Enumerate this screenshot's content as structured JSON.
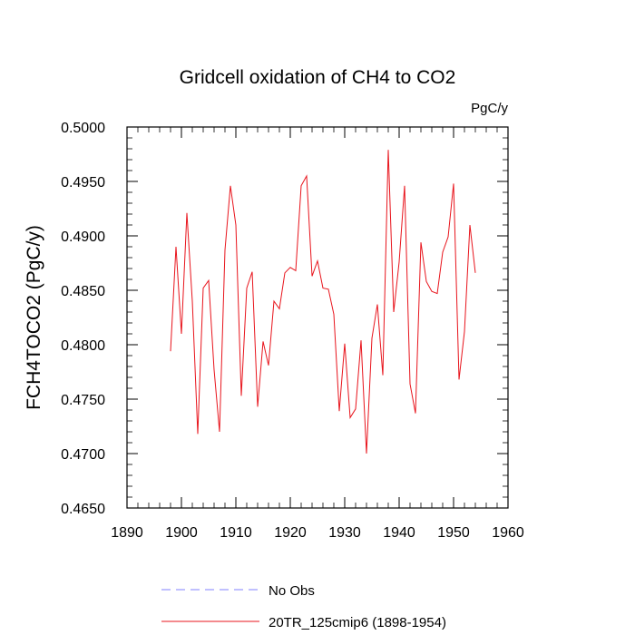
{
  "chart_data": {
    "type": "line",
    "title": "Gridcell oxidation of CH4 to CO2",
    "units": "PgC/y",
    "xlabel": "",
    "ylabel": "FCH4TOCO2  (PgC/y)",
    "xlim": [
      1890,
      1960
    ],
    "ylim": [
      0.465,
      0.5
    ],
    "xticks": [
      1890,
      1900,
      1910,
      1920,
      1930,
      1940,
      1950,
      1960
    ],
    "yticks": [
      0.465,
      0.47,
      0.475,
      0.48,
      0.485,
      0.49,
      0.495,
      0.5
    ],
    "ytick_labels": [
      "0.4650",
      "0.4700",
      "0.4750",
      "0.4800",
      "0.4850",
      "0.4900",
      "0.4950",
      "0.5000"
    ],
    "series": [
      {
        "name": "20TR_125cmip6 (1898-1954)",
        "color": "#e8141c",
        "style": "solid",
        "x": [
          1898,
          1899,
          1900,
          1901,
          1902,
          1903,
          1904,
          1905,
          1906,
          1907,
          1908,
          1909,
          1910,
          1911,
          1912,
          1913,
          1914,
          1915,
          1916,
          1917,
          1918,
          1919,
          1920,
          1921,
          1922,
          1923,
          1924,
          1925,
          1926,
          1927,
          1928,
          1929,
          1930,
          1931,
          1932,
          1933,
          1934,
          1935,
          1936,
          1937,
          1938,
          1939,
          1940,
          1941,
          1942,
          1943,
          1944,
          1945,
          1946,
          1947,
          1948,
          1949,
          1950,
          1951,
          1952,
          1953,
          1954
        ],
        "values": [
          0.4794,
          0.489,
          0.481,
          0.4921,
          0.484,
          0.4718,
          0.4852,
          0.4859,
          0.4777,
          0.472,
          0.4887,
          0.4946,
          0.491,
          0.4753,
          0.4852,
          0.4867,
          0.4743,
          0.4803,
          0.4781,
          0.484,
          0.4833,
          0.4866,
          0.4871,
          0.4868,
          0.4946,
          0.4955,
          0.4863,
          0.4877,
          0.4852,
          0.4851,
          0.4828,
          0.4739,
          0.4801,
          0.4733,
          0.4741,
          0.4804,
          0.47,
          0.4806,
          0.4837,
          0.4772,
          0.4979,
          0.483,
          0.4876,
          0.4946,
          0.4764,
          0.4737,
          0.4894,
          0.4858,
          0.4849,
          0.4847,
          0.4885,
          0.4899,
          0.4948,
          0.4768,
          0.4812,
          0.491,
          0.4866
        ]
      },
      {
        "name": "No Obs",
        "color": "#8080ff",
        "style": "dashed",
        "x": [],
        "values": []
      }
    ],
    "legend": [
      {
        "label": "No Obs",
        "color": "#8080ff",
        "style": "dashed"
      },
      {
        "label": "20TR_125cmip6 (1898-1954)",
        "color": "#e8141c",
        "style": "solid"
      }
    ]
  }
}
